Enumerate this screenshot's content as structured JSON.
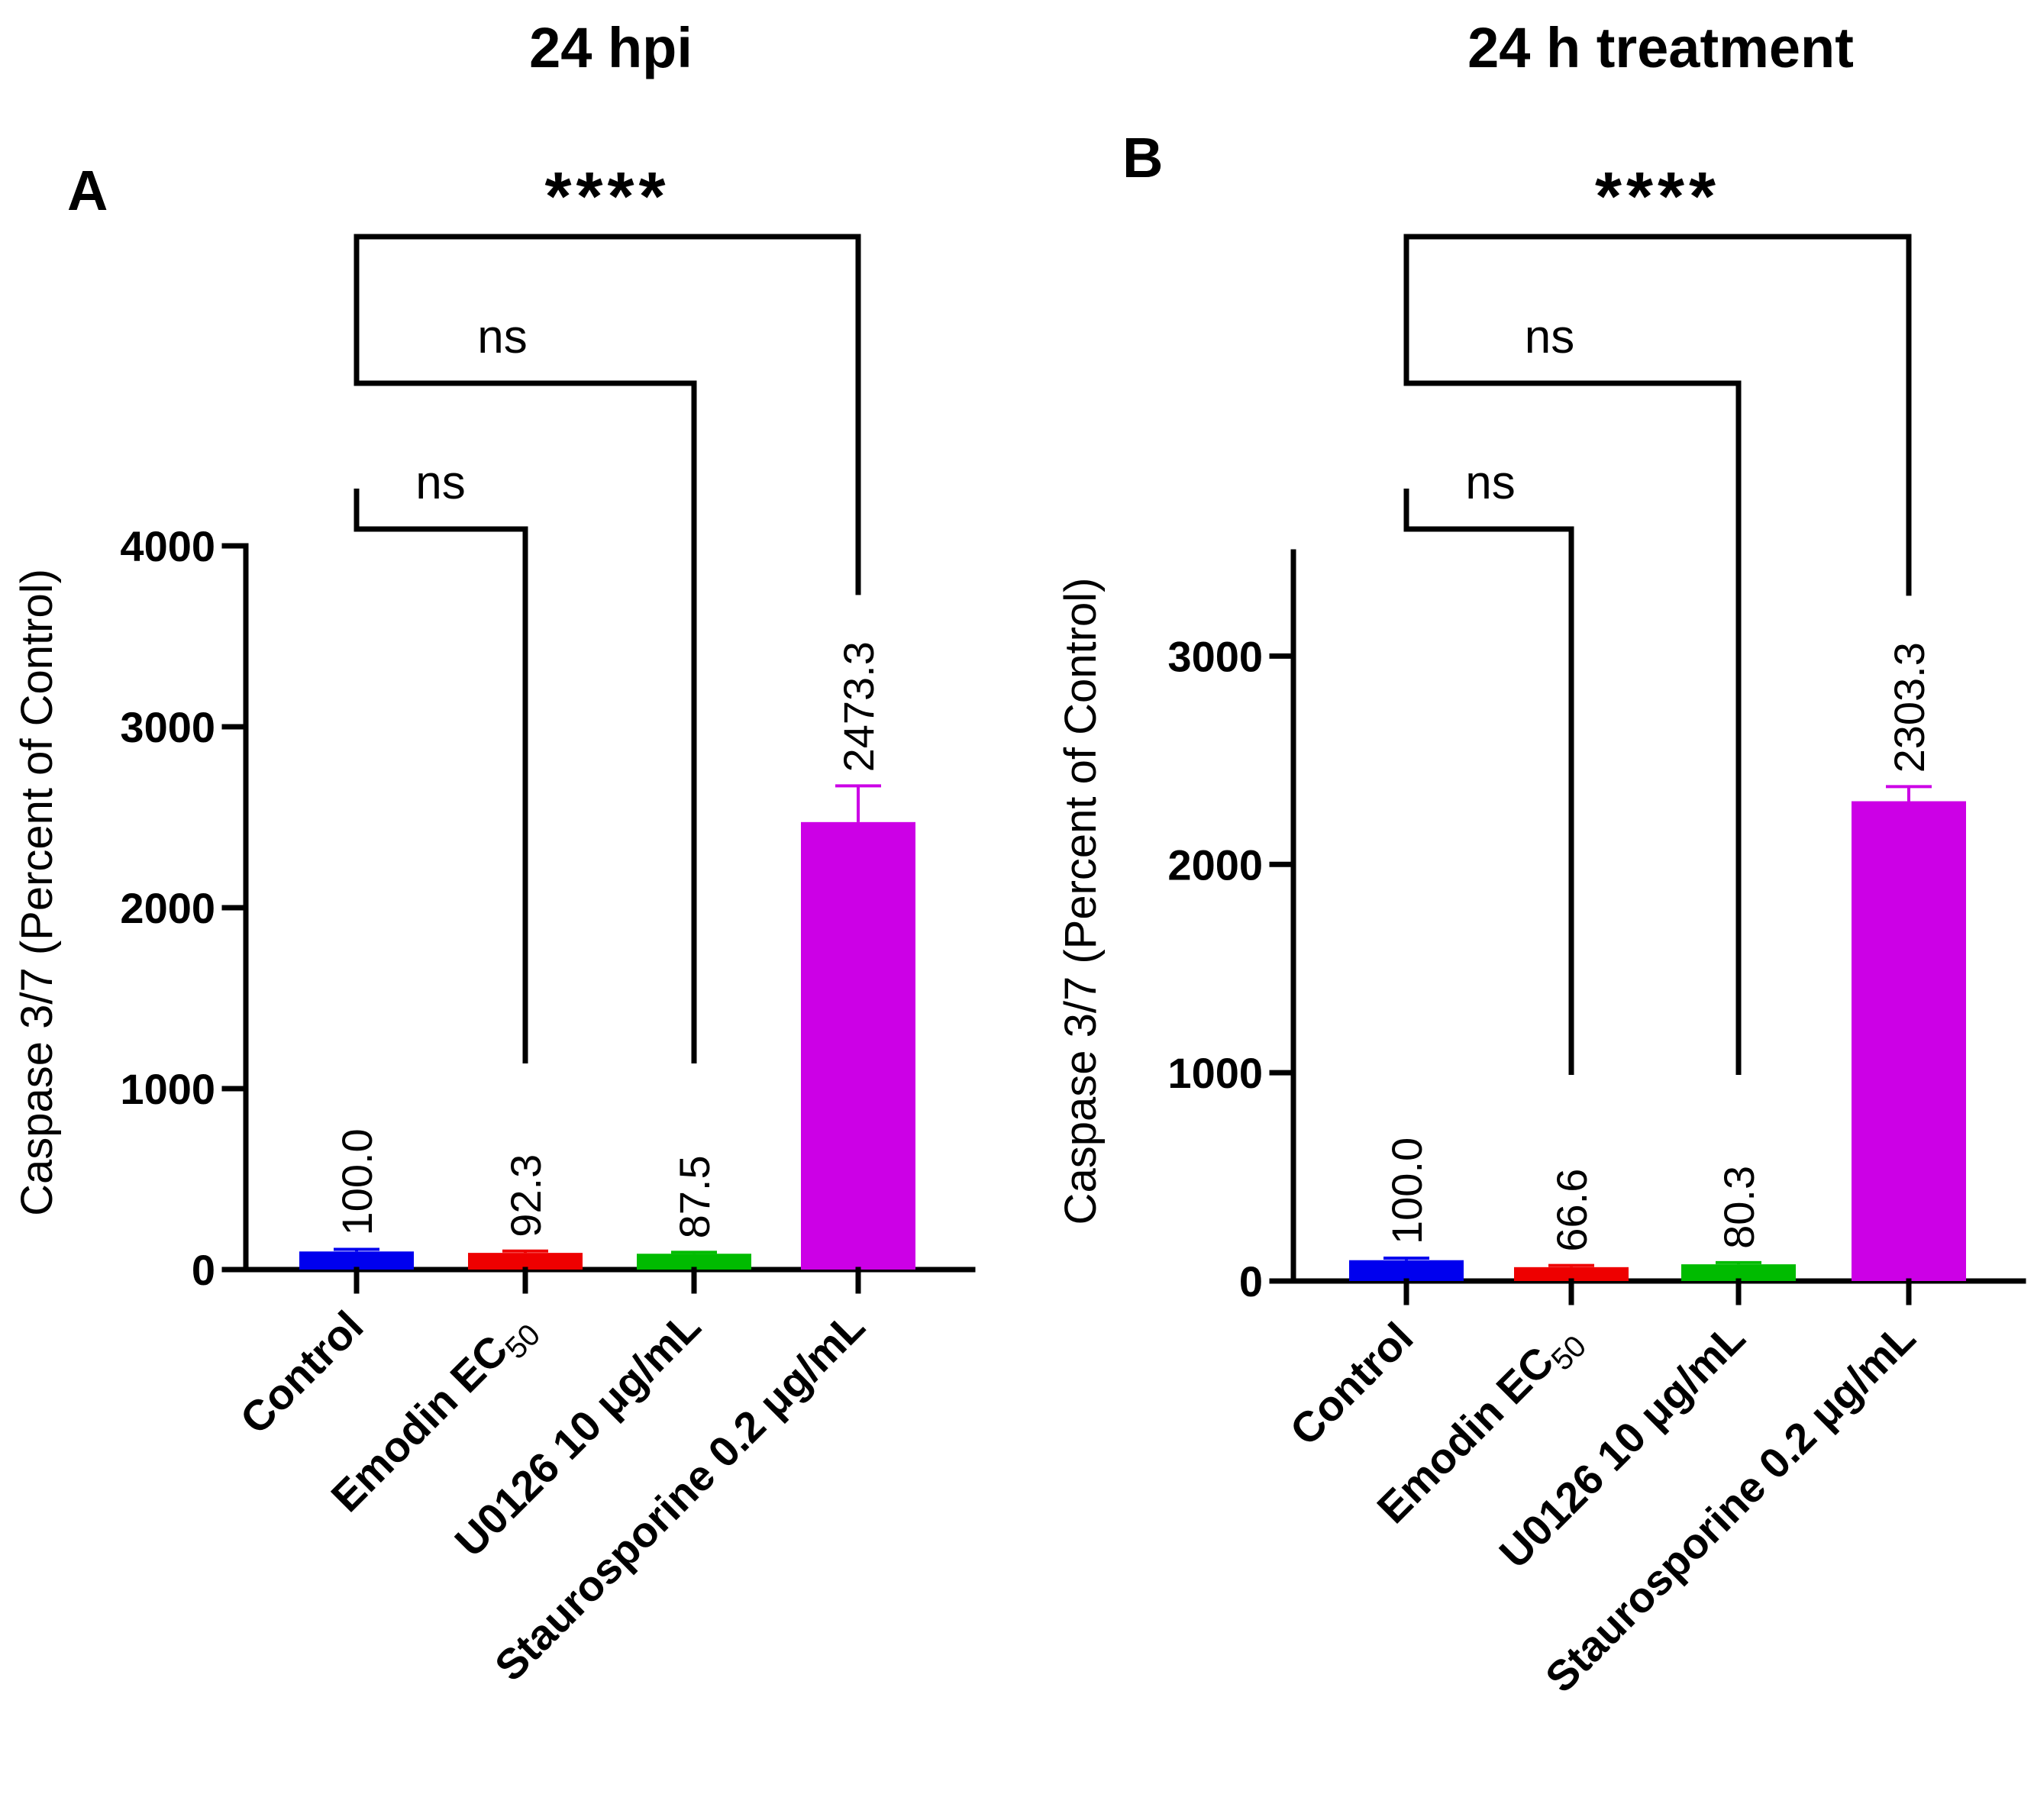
{
  "chart_data": [
    {
      "type": "bar",
      "panel_label": "A",
      "title": "24 hpi",
      "ylabel": "Caspase 3/7 (Percent of Control)",
      "xlabel": "",
      "ylim": [
        0,
        4000
      ],
      "yticks": [
        0,
        1000,
        2000,
        3000,
        4000
      ],
      "ytick_labels": [
        "0",
        "1000",
        "2000",
        "3000",
        "4000"
      ],
      "categories": [
        {
          "label": "Control",
          "subscript": ""
        },
        {
          "label": "Emodin EC",
          "subscript": "50"
        },
        {
          "label": "U0126 10 μg/mL",
          "subscript": ""
        },
        {
          "label": "Staurosporine 0.2 μg/mL",
          "subscript": ""
        }
      ],
      "values": [
        100.0,
        92.3,
        87.5,
        2473.3
      ],
      "value_labels": [
        "100.0",
        "92.3",
        "87.5",
        "2473.3"
      ],
      "errors": [
        12,
        10,
        8,
        200
      ],
      "colors": [
        "#0000ee",
        "#ee0000",
        "#00bb00",
        "#cc00e6"
      ],
      "comparisons": [
        {
          "from": 0,
          "to": 1,
          "label": "ns",
          "level": 0
        },
        {
          "from": 0,
          "to": 2,
          "label": "ns",
          "level": 1
        },
        {
          "from": 0,
          "to": 3,
          "label": "****",
          "level": 2
        }
      ]
    },
    {
      "type": "bar",
      "panel_label": "B",
      "title": "24 h treatment",
      "ylabel": "Caspase 3/7 (Percent of Control)",
      "xlabel": "",
      "ylim": [
        0,
        3500
      ],
      "yticks": [
        0,
        1000,
        2000,
        3000
      ],
      "ytick_labels": [
        "0",
        "1000",
        "2000",
        "3000"
      ],
      "categories": [
        {
          "label": "Control",
          "subscript": ""
        },
        {
          "label": "Emodin EC",
          "subscript": "50"
        },
        {
          "label": "U0126 10 μg/mL",
          "subscript": ""
        },
        {
          "label": "Staurosporine 0.2 μg/mL",
          "subscript": ""
        }
      ],
      "values": [
        100.0,
        66.6,
        80.3,
        2303.3
      ],
      "value_labels": [
        "100.0",
        "66.6",
        "80.3",
        "2303.3"
      ],
      "errors": [
        10,
        8,
        8,
        70
      ],
      "colors": [
        "#0000ee",
        "#ee0000",
        "#00bb00",
        "#cc00e6"
      ],
      "comparisons": [
        {
          "from": 0,
          "to": 1,
          "label": "ns",
          "level": 0
        },
        {
          "from": 0,
          "to": 2,
          "label": "ns",
          "level": 1
        },
        {
          "from": 0,
          "to": 3,
          "label": "****",
          "level": 2
        }
      ]
    }
  ]
}
